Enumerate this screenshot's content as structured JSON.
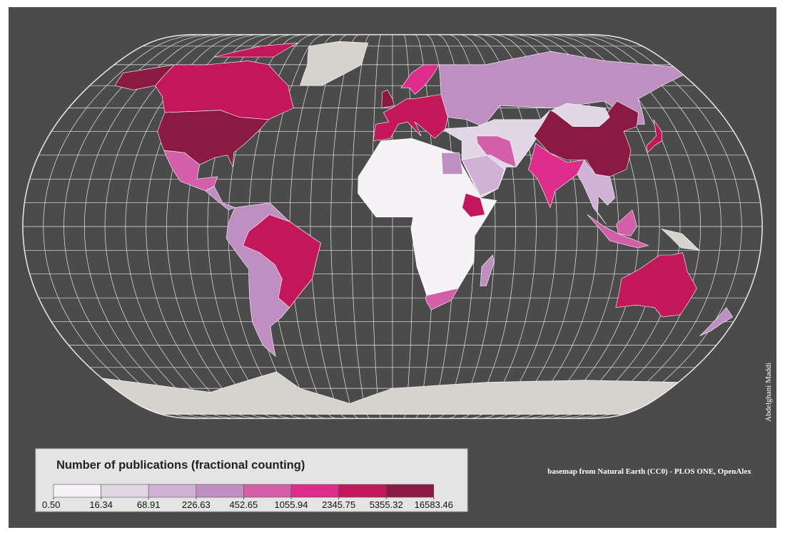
{
  "legend": {
    "title": "Number of publications  (fractional counting)",
    "breaks": [
      {
        "value": 0.5,
        "label": "0.50"
      },
      16.34,
      68.91,
      226.63,
      452.65,
      1055.94,
      2345.75,
      5355.32,
      16583.46
    ],
    "colors": [
      "#f5f3f5",
      "#e0d6e6",
      "#d0b2d6",
      "#c08fc2",
      "#d35fa8",
      "#dd2c8a",
      "#c2185b",
      "#8b1a42"
    ]
  },
  "credit": "basemap from Natural Earth (CC0) - PLOS ONE, OpenAlex",
  "author": "Abdelghani Maddi"
}
